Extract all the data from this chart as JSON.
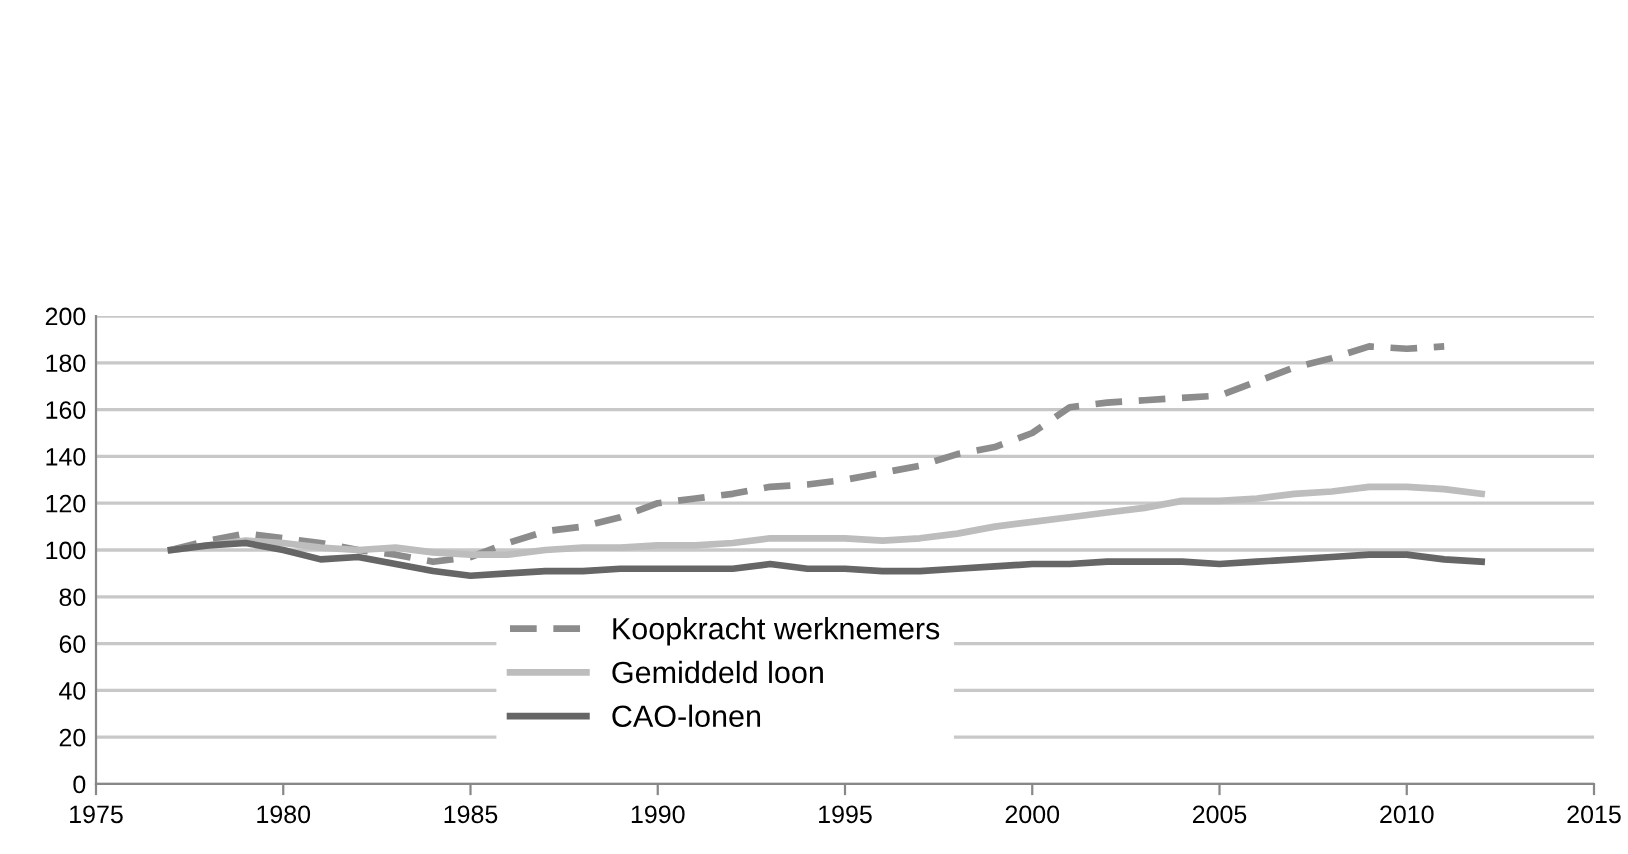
{
  "chart_data": {
    "type": "line",
    "x": [
      1977,
      1978,
      1979,
      1980,
      1981,
      1982,
      1983,
      1984,
      1985,
      1986,
      1987,
      1988,
      1989,
      1990,
      1991,
      1992,
      1993,
      1994,
      1995,
      1996,
      1997,
      1998,
      1999,
      2000,
      2001,
      2002,
      2003,
      2004,
      2005,
      2006,
      2007,
      2008,
      2009,
      2010,
      2011,
      2012
    ],
    "series": [
      {
        "name": "Koopkracht werknemers",
        "color": "#8c8c8c",
        "line_style": "dashed",
        "values": [
          100,
          104,
          107,
          105,
          103,
          100,
          98,
          95,
          97,
          103,
          108,
          110,
          114,
          120,
          122,
          124,
          127,
          128,
          130,
          133,
          136,
          141,
          144,
          150,
          161,
          163,
          164,
          165,
          166,
          172,
          178,
          182,
          187,
          186,
          187,
          null
        ]
      },
      {
        "name": "Gemiddeld loon",
        "color": "#bdbdbd",
        "line_style": "solid",
        "values": [
          100,
          102,
          104,
          103,
          101,
          100,
          101,
          99,
          98,
          98,
          100,
          101,
          101,
          102,
          102,
          103,
          105,
          105,
          105,
          104,
          105,
          107,
          110,
          112,
          114,
          116,
          118,
          121,
          121,
          122,
          124,
          125,
          127,
          127,
          126,
          124
        ]
      },
      {
        "name": "CAO-lonen",
        "color": "#666666",
        "line_style": "solid",
        "values": [
          100,
          102,
          103,
          100,
          96,
          97,
          94,
          91,
          89,
          90,
          91,
          91,
          92,
          92,
          92,
          92,
          94,
          92,
          92,
          91,
          91,
          92,
          93,
          94,
          94,
          95,
          95,
          95,
          94,
          95,
          96,
          97,
          98,
          98,
          96,
          95
        ]
      }
    ],
    "xlim": [
      1975,
      2015
    ],
    "xticks": [
      1975,
      1980,
      1985,
      1990,
      1995,
      2000,
      2005,
      2010,
      2015
    ],
    "ylim": [
      0,
      200
    ],
    "yticks": [
      0,
      20,
      40,
      60,
      80,
      100,
      120,
      140,
      160,
      180,
      200
    ],
    "grid": "y",
    "legend": "bottom",
    "marker": "none"
  }
}
